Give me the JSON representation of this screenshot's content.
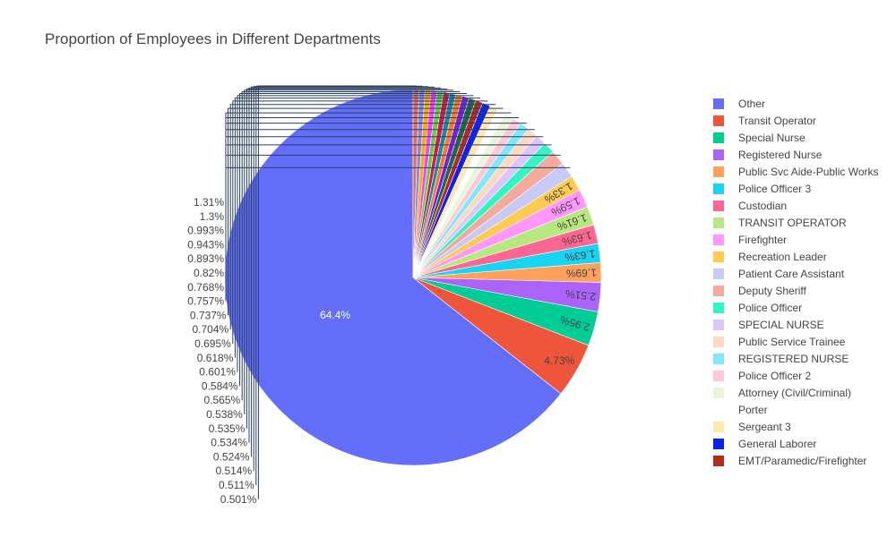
{
  "chart_data": {
    "type": "pie",
    "title": "Proportion of Employees in Different Departments",
    "slices": [
      {
        "label": "Other",
        "value": 64.4,
        "text": "64.4%",
        "color": "#636efa"
      },
      {
        "label": "Transit Operator",
        "value": 4.73,
        "text": "4.73%",
        "color": "#EF553B"
      },
      {
        "label": "Special Nurse",
        "value": 2.95,
        "text": "2.95%",
        "color": "#00cc96"
      },
      {
        "label": "Registered Nurse",
        "value": 2.51,
        "text": "2.51%",
        "color": "#ab63fa"
      },
      {
        "label": "Public Svc Aide-Public Works",
        "value": 1.69,
        "text": "1.69%",
        "color": "#FFA15A"
      },
      {
        "label": "Police Officer 3",
        "value": 1.63,
        "text": "1.63%",
        "color": "#19d3f3"
      },
      {
        "label": "Custodian",
        "value": 1.63,
        "text": "1.63%",
        "color": "#FF6692"
      },
      {
        "label": "TRANSIT OPERATOR",
        "value": 1.61,
        "text": "1.61%",
        "color": "#B6E880"
      },
      {
        "label": "Firefighter",
        "value": 1.59,
        "text": "1.59%",
        "color": "#FF97FF"
      },
      {
        "label": "Recreation Leader",
        "value": 1.33,
        "text": "1.33%",
        "color": "#FECB52"
      },
      {
        "label": "Patient Care Assistant",
        "value": 1.31,
        "text": "1.31%",
        "color": "#c6caf9"
      },
      {
        "label": "Deputy Sheriff",
        "value": 1.3,
        "text": "1.3%",
        "color": "#f5aa9c"
      },
      {
        "label": "Police Officer",
        "value": 0.993,
        "text": "0.993%",
        "color": "#33f5c4"
      },
      {
        "label": "SPECIAL NURSE",
        "value": 0.943,
        "text": "0.943%",
        "color": "#dcc5fc"
      },
      {
        "label": "Public Service Trainee",
        "value": 0.893,
        "text": "0.893%",
        "color": "#fdd9bd"
      },
      {
        "label": "REGISTERED NURSE",
        "value": 0.82,
        "text": "0.82%",
        "color": "#80e8fa"
      },
      {
        "label": "Police Officer 2",
        "value": 0.768,
        "text": "0.768%",
        "color": "#ffc8d9"
      },
      {
        "label": "Attorney (Civil/Criminal)",
        "value": 0.757,
        "text": "0.757%",
        "color": "#e6f6d6"
      },
      {
        "label": "Porter",
        "value": 0.737,
        "text": "0.737%",
        "color": "#ffffff"
      },
      {
        "label": "Sergeant 3",
        "value": 0.704,
        "text": "0.704%",
        "color": "#fde8b0"
      },
      {
        "label": "General Laborer",
        "value": 0.695,
        "text": "0.695%",
        "color": "#0a22f2"
      },
      {
        "label": "EMT/Paramedic/Firefighter",
        "value": 0.618,
        "text": "0.618%",
        "color": "#b32b1c"
      },
      {
        "label": "",
        "value": 0.601,
        "text": "0.601%",
        "color": "#1a6b4a"
      },
      {
        "label": "",
        "value": 0.584,
        "text": "0.584%",
        "color": "#7a1ee0"
      },
      {
        "label": "",
        "value": 0.565,
        "text": "0.565%",
        "color": "#ff7a1a"
      },
      {
        "label": "",
        "value": 0.538,
        "text": "0.538%",
        "color": "#0d8fb0"
      },
      {
        "label": "",
        "value": 0.535,
        "text": "0.535%",
        "color": "#e0163f"
      },
      {
        "label": "",
        "value": 0.534,
        "text": "0.534%",
        "color": "#55d64b"
      },
      {
        "label": "",
        "value": 0.524,
        "text": "0.524%",
        "color": "#ff3dff"
      },
      {
        "label": "",
        "value": 0.514,
        "text": "0.514%",
        "color": "#ffae00"
      },
      {
        "label": "",
        "value": 0.511,
        "text": "0.511%",
        "color": "#7f8cf2"
      },
      {
        "label": "",
        "value": 0.501,
        "text": "0.501%",
        "color": "#ea6d55"
      }
    ],
    "legend_position": "right"
  }
}
